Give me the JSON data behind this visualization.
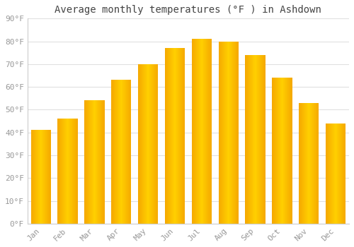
{
  "title": "Average monthly temperatures (°F ) in Ashdown",
  "months": [
    "Jan",
    "Feb",
    "Mar",
    "Apr",
    "May",
    "Jun",
    "Jul",
    "Aug",
    "Sep",
    "Oct",
    "Nov",
    "Dec"
  ],
  "values": [
    41,
    46,
    54,
    63,
    70,
    77,
    81,
    80,
    74,
    64,
    53,
    44
  ],
  "bar_color_center": "#FFD000",
  "bar_color_edge": "#F5A800",
  "background_color": "#FFFFFF",
  "grid_color": "#E0E0E0",
  "ylim": [
    0,
    90
  ],
  "yticks": [
    0,
    10,
    20,
    30,
    40,
    50,
    60,
    70,
    80,
    90
  ],
  "ytick_labels": [
    "0°F",
    "10°F",
    "20°F",
    "30°F",
    "40°F",
    "50°F",
    "60°F",
    "70°F",
    "80°F",
    "90°F"
  ],
  "title_fontsize": 10,
  "tick_fontsize": 8,
  "tick_color": "#999999",
  "bar_width": 0.75
}
